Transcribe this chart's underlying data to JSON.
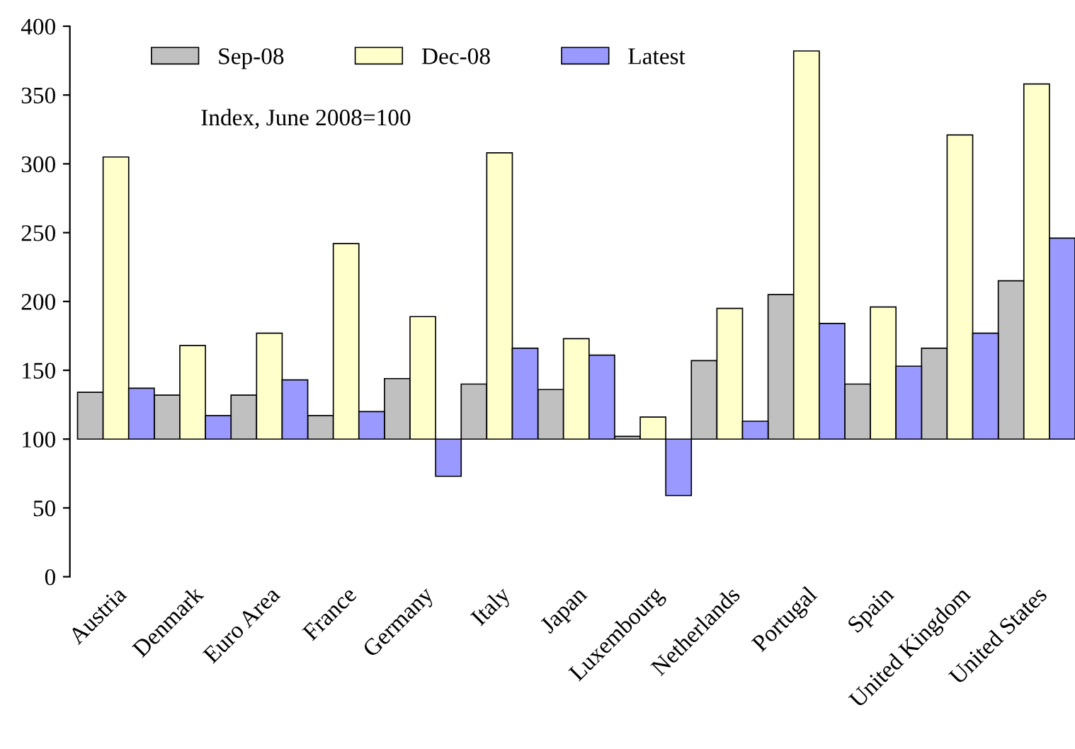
{
  "chart_data": {
    "type": "bar",
    "categories": [
      "Austria",
      "Denmark",
      "Euro Area",
      "France",
      "Germany",
      "Italy",
      "Japan",
      "Luxembourg",
      "Netherlands",
      "Portugal",
      "Spain",
      "United Kingdom",
      "United States"
    ],
    "series": [
      {
        "name": "Sep-08",
        "color": "#c0c0c0",
        "base": [
          100,
          100,
          100,
          100,
          100,
          100,
          100,
          100,
          100,
          100,
          100,
          100,
          100
        ],
        "values": [
          34,
          32,
          32,
          17,
          44,
          40,
          36,
          2,
          57,
          105,
          40,
          66,
          115
        ]
      },
      {
        "name": "Dec-08",
        "color": "#ffffcc",
        "base": [
          100,
          100,
          100,
          100,
          100,
          100,
          100,
          100,
          100,
          100,
          100,
          100,
          100
        ],
        "values": [
          205,
          68,
          77,
          142,
          89,
          208,
          73,
          16,
          95,
          282,
          96,
          221,
          258
        ]
      },
      {
        "name": "Latest",
        "color": "#9999ff",
        "base": [
          100,
          100,
          100,
          100,
          100,
          100,
          100,
          100,
          100,
          100,
          100,
          100,
          100
        ],
        "values": [
          37,
          17,
          43,
          20,
          -27,
          66,
          61,
          -41,
          13,
          84,
          53,
          77,
          146
        ]
      }
    ],
    "ylim": [
      0,
      400
    ],
    "yticks": [
      0,
      50,
      100,
      150,
      200,
      250,
      300,
      350,
      400
    ],
    "grid": false,
    "legend": "top left",
    "annotations": [
      "Index, June 2008=100"
    ]
  }
}
